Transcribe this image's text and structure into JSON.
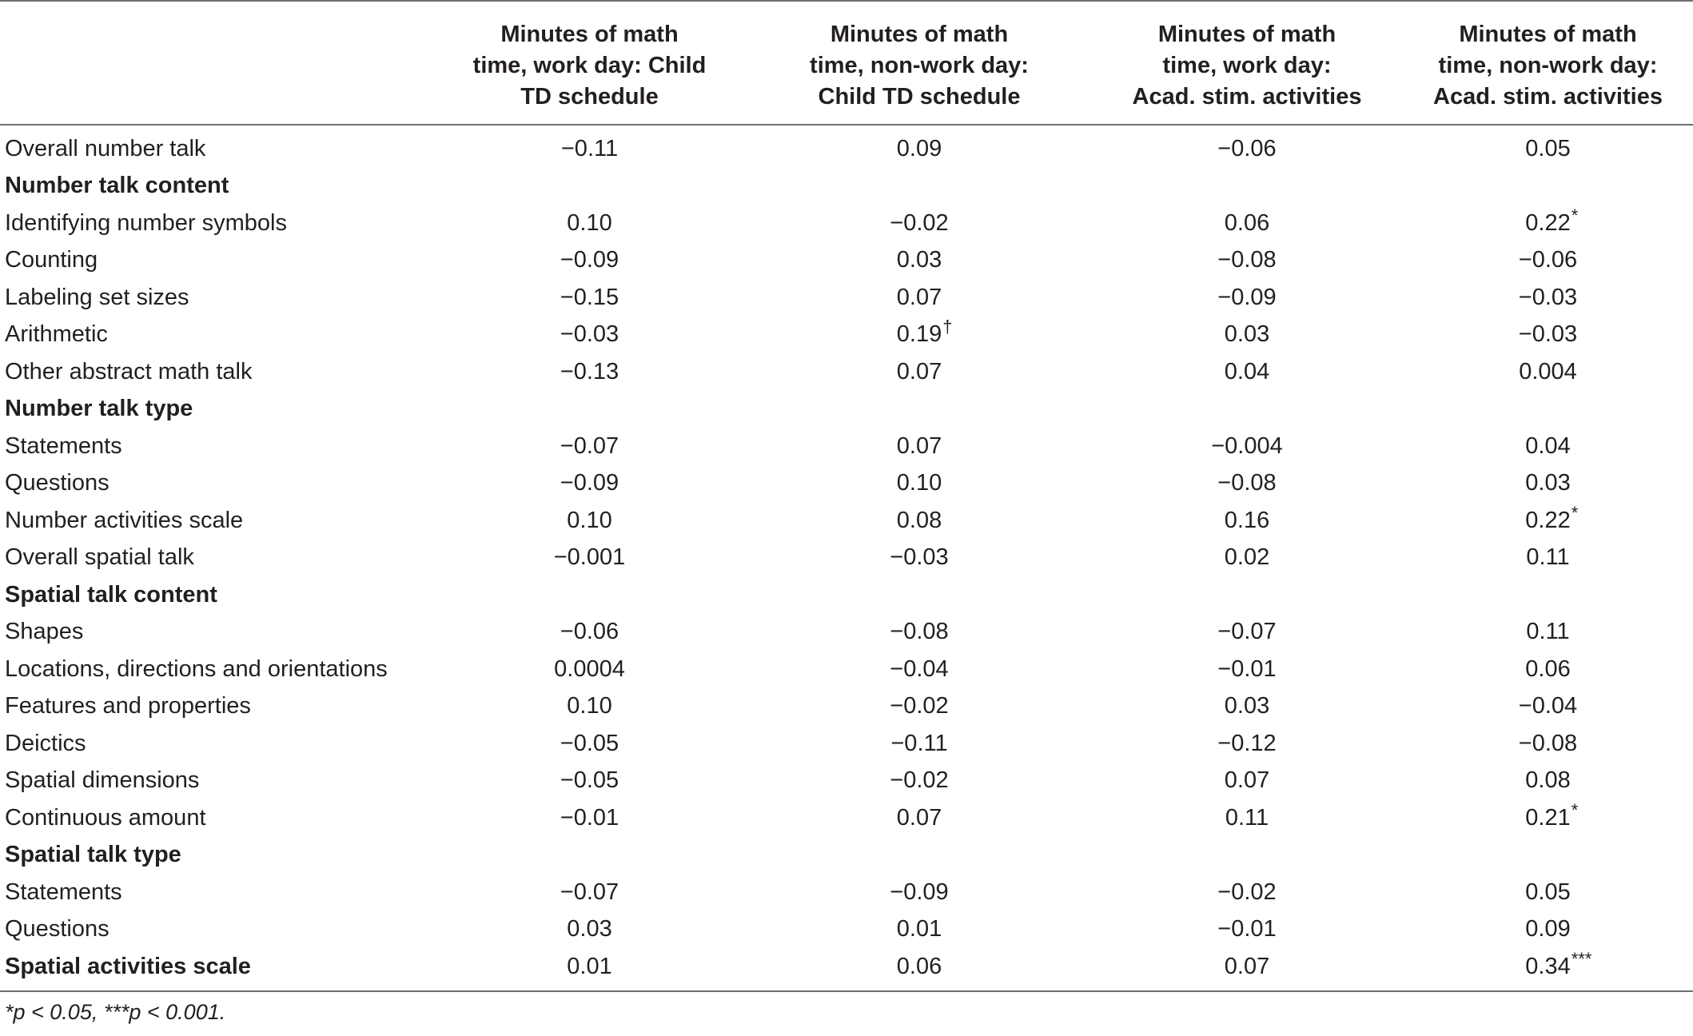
{
  "table": {
    "headers": [
      "",
      "Minutes of math\ntime, work day: Child\nTD schedule",
      "Minutes of math\ntime, non-work day:\nChild TD schedule",
      "Minutes of math\ntime, work day:\nAcad. stim. activities",
      "Minutes of math\ntime, non-work day:\nAcad. stim. activities"
    ],
    "rows": [
      {
        "label": "Overall number talk",
        "bold": false,
        "values": [
          {
            "v": "−0.11"
          },
          {
            "v": "0.09"
          },
          {
            "v": "−0.06"
          },
          {
            "v": "0.05"
          }
        ]
      },
      {
        "label": "Number talk content",
        "bold": true,
        "values": []
      },
      {
        "label": "Identifying number symbols",
        "bold": false,
        "values": [
          {
            "v": "0.10"
          },
          {
            "v": "−0.02"
          },
          {
            "v": "0.06"
          },
          {
            "v": "0.22",
            "sup": "*"
          }
        ]
      },
      {
        "label": "Counting",
        "bold": false,
        "values": [
          {
            "v": "−0.09"
          },
          {
            "v": "0.03"
          },
          {
            "v": "−0.08"
          },
          {
            "v": "−0.06"
          }
        ]
      },
      {
        "label": "Labeling set sizes",
        "bold": false,
        "values": [
          {
            "v": "−0.15"
          },
          {
            "v": "0.07"
          },
          {
            "v": "−0.09"
          },
          {
            "v": "−0.03"
          }
        ]
      },
      {
        "label": "Arithmetic",
        "bold": false,
        "values": [
          {
            "v": "−0.03"
          },
          {
            "v": "0.19",
            "sup": "†"
          },
          {
            "v": "0.03"
          },
          {
            "v": "−0.03"
          }
        ]
      },
      {
        "label": "Other abstract math talk",
        "bold": false,
        "values": [
          {
            "v": "−0.13"
          },
          {
            "v": "0.07"
          },
          {
            "v": "0.04"
          },
          {
            "v": "0.004"
          }
        ]
      },
      {
        "label": "Number talk type",
        "bold": true,
        "values": []
      },
      {
        "label": "Statements",
        "bold": false,
        "values": [
          {
            "v": "−0.07"
          },
          {
            "v": "0.07"
          },
          {
            "v": "−0.004"
          },
          {
            "v": "0.04"
          }
        ]
      },
      {
        "label": "Questions",
        "bold": false,
        "values": [
          {
            "v": "−0.09"
          },
          {
            "v": "0.10"
          },
          {
            "v": "−0.08"
          },
          {
            "v": "0.03"
          }
        ]
      },
      {
        "label": "Number activities scale",
        "bold": false,
        "values": [
          {
            "v": "0.10"
          },
          {
            "v": "0.08"
          },
          {
            "v": "0.16"
          },
          {
            "v": "0.22",
            "sup": "*"
          }
        ]
      },
      {
        "label": "Overall spatial talk",
        "bold": false,
        "values": [
          {
            "v": "−0.001"
          },
          {
            "v": "−0.03"
          },
          {
            "v": "0.02"
          },
          {
            "v": "0.11"
          }
        ]
      },
      {
        "label": "Spatial talk content",
        "bold": true,
        "values": []
      },
      {
        "label": "Shapes",
        "bold": false,
        "values": [
          {
            "v": "−0.06"
          },
          {
            "v": "−0.08"
          },
          {
            "v": "−0.07"
          },
          {
            "v": "0.11"
          }
        ]
      },
      {
        "label": "Locations, directions and orientations",
        "bold": false,
        "values": [
          {
            "v": "0.0004"
          },
          {
            "v": "−0.04"
          },
          {
            "v": "−0.01"
          },
          {
            "v": "0.06"
          }
        ]
      },
      {
        "label": "Features and properties",
        "bold": false,
        "values": [
          {
            "v": "0.10"
          },
          {
            "v": "−0.02"
          },
          {
            "v": "0.03"
          },
          {
            "v": "−0.04"
          }
        ]
      },
      {
        "label": "Deictics",
        "bold": false,
        "values": [
          {
            "v": "−0.05"
          },
          {
            "v": "−0.11"
          },
          {
            "v": "−0.12"
          },
          {
            "v": "−0.08"
          }
        ]
      },
      {
        "label": "Spatial dimensions",
        "bold": false,
        "values": [
          {
            "v": "−0.05"
          },
          {
            "v": "−0.02"
          },
          {
            "v": "0.07"
          },
          {
            "v": "0.08"
          }
        ]
      },
      {
        "label": "Continuous amount",
        "bold": false,
        "values": [
          {
            "v": "−0.01"
          },
          {
            "v": "0.07"
          },
          {
            "v": "0.11"
          },
          {
            "v": "0.21",
            "sup": "*"
          }
        ]
      },
      {
        "label": "Spatial talk type",
        "bold": true,
        "values": []
      },
      {
        "label": "Statements",
        "bold": false,
        "values": [
          {
            "v": "−0.07"
          },
          {
            "v": "−0.09"
          },
          {
            "v": "−0.02"
          },
          {
            "v": "0.05"
          }
        ]
      },
      {
        "label": "Questions",
        "bold": false,
        "values": [
          {
            "v": "0.03"
          },
          {
            "v": "0.01"
          },
          {
            "v": "−0.01"
          },
          {
            "v": "0.09"
          }
        ]
      },
      {
        "label": "Spatial activities scale",
        "bold": true,
        "values": [
          {
            "v": "0.01"
          },
          {
            "v": "0.06"
          },
          {
            "v": "0.07"
          },
          {
            "v": "0.34",
            "sup": "***"
          }
        ]
      }
    ]
  },
  "footnote": "*p < 0.05, ***p < 0.001."
}
